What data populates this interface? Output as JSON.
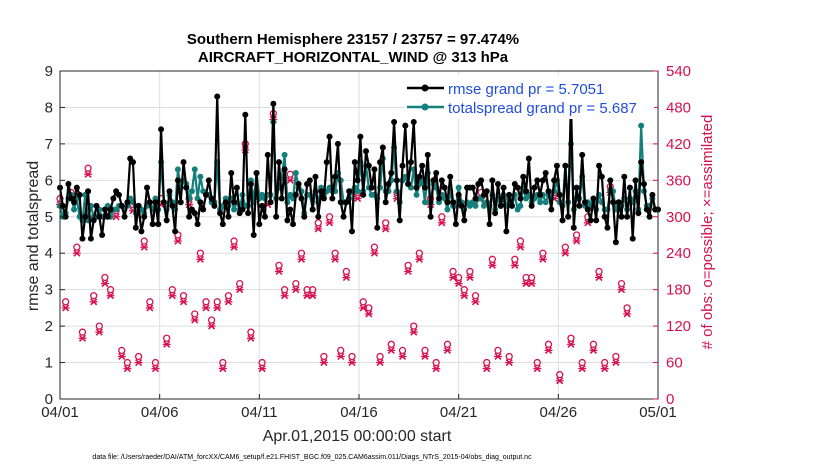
{
  "chart_data": {
    "type": "line",
    "title": [
      "Southern Hemisphere 23157 / 23757 = 97.474%",
      "AIRCRAFT_HORIZONTAL_WIND @ 313 hPa"
    ],
    "xlabel": "Apr.01,2015 00:00:00 start",
    "ylabel": "rmse and totalspread",
    "y2label": "# of obs: o=possible; ×=assimilated",
    "footnote": "data file: /Users/raeder/DAI/ATM_forcXX/CAM6_setup/f.e21.FHIST_BGC.f09_025.CAM6assim.011/Diags_NTrS_2015-04/obs_diag_output.nc",
    "x_ticks": [
      "04/01",
      "04/06",
      "04/11",
      "04/16",
      "04/21",
      "04/26",
      "05/01"
    ],
    "xlim": [
      0,
      30
    ],
    "ylim": [
      0,
      9
    ],
    "y_ticks": [
      0,
      1,
      2,
      3,
      4,
      5,
      6,
      7,
      8,
      9
    ],
    "y2lim": [
      0,
      540
    ],
    "y2_ticks": [
      0,
      60,
      120,
      180,
      240,
      300,
      360,
      420,
      480,
      540
    ],
    "legend_position": "top-right",
    "grid": true,
    "colors": {
      "rmse": "#000000",
      "spread": "#13807d",
      "obs": "#d6114f",
      "legend_text": "#1f4fe0"
    },
    "series": [
      {
        "name": "rmse grand pr = 5.7051",
        "values": [
          5.8,
          5.3,
          5.0,
          5.9,
          5.5,
          5.4,
          5.8,
          5.6,
          4.4,
          5.0,
          5.7,
          4.4,
          4.9,
          5.3,
          5.0,
          4.5,
          5.2,
          5.0,
          5.2,
          5.5,
          5.7,
          5.6,
          5.3,
          5.0,
          5.4,
          6.6,
          6.5,
          4.7,
          5.3,
          4.6,
          5.0,
          5.8,
          5.4,
          4.8,
          5.4,
          4.8,
          7.4,
          5.4,
          4.9,
          5.7,
          5.3,
          4.6,
          6.0,
          5.4,
          6.5,
          5.8,
          5.0,
          5.2,
          5.1,
          4.8,
          5.4,
          5.2,
          5.6,
          6.0,
          5.5,
          5.3,
          8.3,
          5.1,
          4.8,
          5.4,
          5.0,
          6.2,
          5.4,
          5.8,
          5.1,
          5.2,
          7.8,
          5.1,
          5.9,
          4.5,
          6.2,
          4.8,
          5.3,
          5.0,
          6.7,
          5.4,
          8.1,
          5.0,
          6.5,
          5.5,
          6.3,
          4.9,
          5.2,
          4.8,
          5.6,
          5.9,
          5.5,
          5.0,
          5.9,
          6.0,
          5.2,
          6.1,
          5.0,
          5.7,
          5.5,
          6.5,
          7.2,
          5.5,
          6.1,
          7.0,
          5.4,
          5.0,
          5.4,
          5.7,
          4.6,
          6.5,
          6.0,
          7.2,
          5.6,
          6.8,
          6.4,
          5.8,
          6.3,
          4.7,
          6.5,
          6.9,
          5.4,
          5.9,
          6.2,
          7.6,
          6.0,
          4.9,
          6.4,
          7.5,
          5.9,
          6.5,
          7.6,
          5.8,
          6.1,
          6.4,
          5.8,
          6.7,
          5.0,
          6.0,
          6.2,
          5.5,
          6.0,
          5.8,
          5.4,
          6.1,
          5.4,
          4.8,
          5.6,
          5.3,
          4.9,
          5.8,
          5.8,
          5.8,
          5.5,
          5.9,
          6.0,
          5.6,
          5.7,
          4.8,
          6.0,
          5.1,
          5.9,
          5.3,
          5.8,
          4.6,
          5.6,
          5.3,
          5.9,
          5.8,
          5.5,
          6.1,
          5.7,
          6.6,
          5.3,
          5.8,
          6.0,
          5.6,
          6.0,
          6.2,
          5.7,
          5.2,
          6.0,
          6.4,
          5.6,
          4.9,
          6.4,
          5.0,
          8.2,
          4.7,
          5.8,
          5.3,
          6.7,
          5.4,
          5.2,
          4.9,
          5.5,
          4.9,
          6.4,
          6.1,
          5.0,
          4.7,
          6.0,
          5.4,
          4.3,
          5.4,
          5.0,
          6.1,
          5.0,
          5.8,
          4.4,
          6.0,
          5.1,
          6.5,
          5.9,
          5.2,
          5.0,
          5.6,
          5.2,
          5.2
        ]
      },
      {
        "name": "totalspread grand pr = 5.687",
        "values": [
          5.3,
          5.0,
          5.1,
          5.5,
          5.6,
          5.2,
          5.5,
          5.0,
          4.9,
          5.6,
          4.9,
          5.3,
          5.0,
          5.0,
          5.2,
          5.0,
          5.0,
          5.3,
          5.0,
          5.2,
          5.2,
          5.3,
          5.3,
          5.2,
          5.3,
          5.5,
          5.4,
          5.1,
          5.3,
          5.2,
          5.1,
          5.3,
          5.4,
          5.2,
          5.5,
          5.2,
          6.5,
          5.4,
          5.2,
          5.6,
          5.4,
          5.2,
          6.3,
          5.8,
          6.0,
          5.9,
          5.5,
          5.7,
          6.3,
          5.5,
          6.1,
          5.7,
          5.6,
          5.6,
          5.4,
          5.4,
          6.5,
          5.2,
          5.3,
          5.5,
          5.3,
          5.5,
          5.2,
          5.4,
          5.2,
          5.6,
          5.3,
          5.3,
          6.0,
          5.4,
          6.2,
          5.5,
          5.6,
          5.5,
          5.6,
          5.6,
          7.6,
          5.5,
          5.8,
          6.1,
          6.7,
          5.4,
          5.6,
          5.5,
          6.2,
          5.8,
          5.7,
          5.1,
          5.6,
          5.6,
          5.2,
          5.7,
          5.4,
          5.8,
          5.6,
          5.7,
          5.8,
          5.7,
          5.7,
          6.2,
          6.0,
          5.4,
          5.4,
          5.5,
          5.7,
          5.8,
          5.7,
          6.5,
          5.7,
          6.4,
          5.8,
          5.6,
          5.6,
          5.5,
          5.8,
          6.6,
          5.7,
          5.7,
          6.0,
          6.9,
          5.7,
          5.4,
          6.0,
          6.1,
          5.9,
          5.8,
          6.3,
          5.6,
          5.9,
          6.0,
          5.4,
          6.2,
          5.4,
          5.9,
          5.8,
          5.4,
          5.6,
          5.5,
          5.2,
          5.7,
          5.3,
          5.3,
          5.8,
          5.4,
          5.2,
          5.4,
          5.3,
          5.4,
          5.3,
          5.5,
          5.5,
          5.3,
          5.4,
          5.3,
          5.6,
          5.2,
          5.5,
          5.3,
          5.6,
          5.3,
          5.5,
          5.3,
          5.6,
          5.2,
          5.3,
          5.8,
          5.5,
          5.6,
          5.4,
          5.5,
          5.6,
          5.4,
          5.6,
          5.4,
          5.6,
          5.5,
          5.7,
          6.0,
          5.4,
          5.3,
          6.4,
          5.4,
          7.0,
          5.2,
          5.5,
          5.5,
          6.1,
          5.3,
          5.4,
          5.3,
          5.4,
          5.2,
          5.6,
          5.4,
          5.2,
          5.2,
          5.7,
          5.7,
          5.2,
          5.4,
          5.3,
          5.5,
          5.2,
          5.5,
          5.4,
          5.7,
          5.2,
          7.5,
          5.7,
          5.3,
          5.3,
          5.5,
          5.2,
          5.2
        ]
      },
      {
        "name": "possible",
        "axis": "right",
        "marker": "o",
        "values": [
          330,
          280,
          160,
          370,
          340,
          260,
          250,
          150,
          110,
          170,
          380,
          130,
          170,
          270,
          120,
          80,
          200,
          120,
          180,
          350,
          310,
          170,
          80,
          150,
          60,
          260,
          320,
          150,
          70,
          190,
          260,
          340,
          160,
          140,
          60,
          170,
          330,
          230,
          100,
          180,
          180,
          330,
          270,
          120,
          170,
          130,
          330,
          160,
          140,
          300,
          240,
          160,
          160,
          100,
          130,
          320,
          160,
          100,
          60,
          210,
          170,
          310,
          260,
          100,
          190,
          190,
          420,
          150,
          110,
          50,
          340,
          90,
          60,
          230,
          330,
          160,
          470,
          130,
          220,
          290,
          180,
          140,
          370,
          110,
          190,
          300,
          240,
          80,
          180,
          330,
          180,
          180,
          290,
          150,
          70,
          180,
          300,
          150,
          240,
          220,
          80,
          280,
          210,
          140,
          70,
          180,
          340,
          240,
          160,
          80,
          150,
          280,
          250,
          130,
          70,
          260,
          290,
          160,
          90,
          170,
          340,
          200,
          80,
          200,
          220,
          160,
          120,
          90,
          240,
          230,
          80,
          180,
          330,
          150,
          60,
          170,
          300,
          250,
          90,
          120,
          210,
          330,
          200,
          70,
          180,
          290,
          210,
          90,
          170,
          260,
          340,
          200,
          60,
          210,
          230,
          270,
          80,
          180,
          330,
          190,
          70,
          200,
          230,
          80,
          260,
          310,
          200,
          90,
          200,
          210,
          60,
          320,
          240,
          190,
          90,
          210,
          340,
          140,
          40,
          230,
          250,
          190,
          100,
          230,
          270,
          200,
          60,
          220,
          300,
          290,
          90,
          230,
          210,
          140,
          60,
          210,
          350,
          190,
          70,
          240,
          190,
          100,
          150,
          240
        ]
      },
      {
        "name": "assimilated",
        "axis": "right",
        "marker": "x",
        "values": [
          320,
          270,
          150,
          360,
          330,
          250,
          240,
          140,
          100,
          160,
          370,
          120,
          160,
          260,
          110,
          70,
          190,
          110,
          170,
          340,
          300,
          160,
          70,
          140,
          50,
          250,
          310,
          140,
          60,
          180,
          250,
          330,
          150,
          130,
          50,
          160,
          320,
          220,
          90,
          170,
          170,
          320,
          260,
          110,
          160,
          120,
          320,
          150,
          130,
          290,
          230,
          150,
          150,
          90,
          120,
          310,
          150,
          90,
          50,
          200,
          160,
          300,
          250,
          90,
          180,
          180,
          410,
          140,
          100,
          40,
          330,
          80,
          50,
          220,
          320,
          150,
          460,
          120,
          210,
          280,
          170,
          130,
          360,
          100,
          180,
          290,
          230,
          70,
          170,
          320,
          170,
          170,
          280,
          140,
          60,
          170,
          290,
          140,
          230,
          210,
          70,
          270,
          200,
          130,
          60,
          170,
          330,
          230,
          150,
          70,
          140,
          270,
          240,
          120,
          60,
          250,
          280,
          150,
          80,
          160,
          330,
          190,
          70,
          190,
          210,
          150,
          110,
          80,
          230,
          220,
          70,
          170,
          320,
          140,
          50,
          160,
          290,
          240,
          80,
          110,
          200,
          320,
          190,
          60,
          170,
          280,
          200,
          80,
          160,
          250,
          330,
          190,
          50,
          200,
          220,
          260,
          70,
          170,
          320,
          180,
          60,
          190,
          220,
          70,
          250,
          300,
          190,
          80,
          190,
          200,
          50,
          310,
          230,
          180,
          80,
          200,
          330,
          130,
          30,
          220,
          240,
          180,
          90,
          220,
          260,
          190,
          50,
          210,
          290,
          280,
          80,
          220,
          200,
          130,
          50,
          200,
          340,
          180,
          60,
          230,
          180,
          90,
          140,
          230
        ]
      }
    ]
  }
}
